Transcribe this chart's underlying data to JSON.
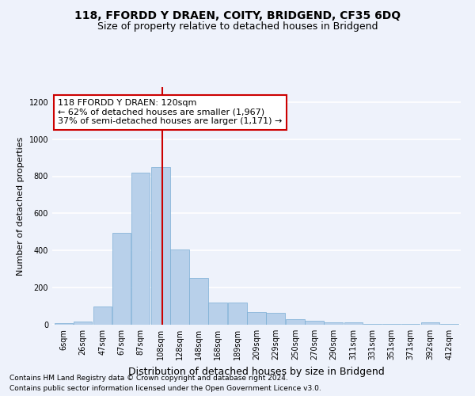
{
  "title": "118, FFORDD Y DRAEN, COITY, BRIDGEND, CF35 6DQ",
  "subtitle": "Size of property relative to detached houses in Bridgend",
  "xlabel": "Distribution of detached houses by size in Bridgend",
  "ylabel": "Number of detached properties",
  "bar_color": "#b8d0ea",
  "bar_edge_color": "#7aadd4",
  "vline_x": 120,
  "vline_color": "#cc0000",
  "categories": [
    "6sqm",
    "26sqm",
    "47sqm",
    "67sqm",
    "87sqm",
    "108sqm",
    "128sqm",
    "148sqm",
    "168sqm",
    "189sqm",
    "209sqm",
    "229sqm",
    "250sqm",
    "270sqm",
    "290sqm",
    "311sqm",
    "331sqm",
    "351sqm",
    "371sqm",
    "392sqm",
    "412sqm"
  ],
  "bin_edges": [
    6,
    26,
    47,
    67,
    87,
    108,
    128,
    148,
    168,
    189,
    209,
    229,
    250,
    270,
    290,
    311,
    331,
    351,
    371,
    392,
    412
  ],
  "bin_width": 20,
  "bar_heights": [
    10,
    15,
    100,
    495,
    820,
    850,
    405,
    250,
    120,
    120,
    70,
    65,
    32,
    22,
    14,
    14,
    4,
    4,
    4,
    12,
    4
  ],
  "ylim": [
    0,
    1280
  ],
  "yticks": [
    0,
    200,
    400,
    600,
    800,
    1000,
    1200
  ],
  "annotation_text": "118 FFORDD Y DRAEN: 120sqm\n← 62% of detached houses are smaller (1,967)\n37% of semi-detached houses are larger (1,171) →",
  "annotation_box_color": "#ffffff",
  "annotation_box_edge": "#cc0000",
  "footnote1": "Contains HM Land Registry data © Crown copyright and database right 2024.",
  "footnote2": "Contains public sector information licensed under the Open Government Licence v3.0.",
  "background_color": "#eef2fb",
  "grid_color": "#ffffff",
  "title_fontsize": 10,
  "subtitle_fontsize": 9,
  "ylabel_fontsize": 8,
  "xlabel_fontsize": 9,
  "tick_fontsize": 7,
  "annotation_fontsize": 8,
  "footnote_fontsize": 6.5
}
